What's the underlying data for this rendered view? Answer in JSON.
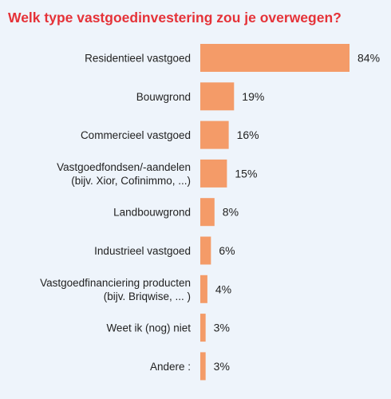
{
  "chart_data": {
    "type": "bar",
    "orientation": "horizontal",
    "title": "Welk type vastgoedinvestering zou je overwegen?",
    "categories": [
      [
        "Residentieel vastgoed"
      ],
      [
        "Bouwgrond"
      ],
      [
        "Commercieel vastgoed"
      ],
      [
        "Vastgoedfondsen/-aandelen",
        "(bijv. Xior, Cofinimmo, ...)"
      ],
      [
        "Landbouwgrond"
      ],
      [
        "Industrieel vastgoed"
      ],
      [
        "Vastgoedfinanciering producten",
        "(bijv. Briqwise, ... )"
      ],
      [
        "Weet ik (nog) niet"
      ],
      [
        "Andere :"
      ]
    ],
    "values": [
      84,
      19,
      16,
      15,
      8,
      6,
      4,
      3,
      3
    ],
    "value_labels": [
      "84%",
      "19%",
      "16%",
      "15%",
      "8%",
      "6%",
      "4%",
      "3%",
      "3%"
    ],
    "unit": "%",
    "xlim": [
      0,
      84
    ],
    "grid": false,
    "colors": {
      "bar": "#f49b68",
      "title": "#e53238",
      "background": "#eef4fb"
    }
  }
}
